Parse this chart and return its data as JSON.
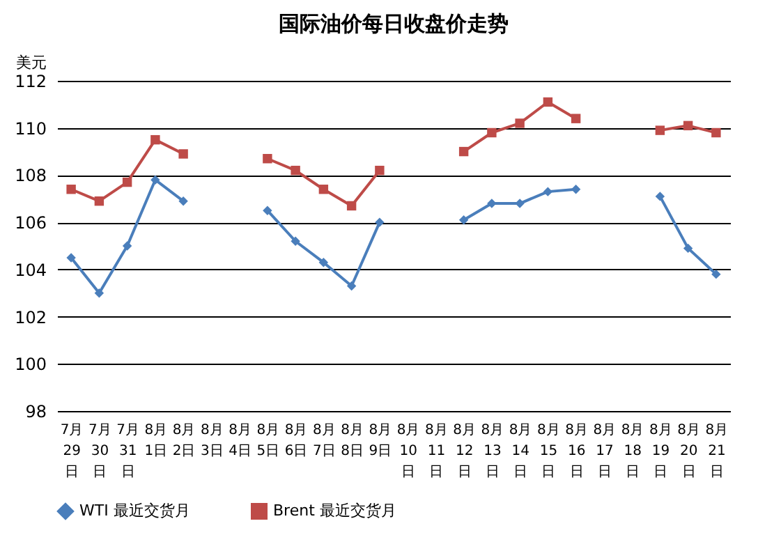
{
  "chart_data": {
    "type": "line",
    "title": "国际油价每日收盘价走势",
    "ylabel": "美元",
    "categories": [
      "7月29日",
      "7月30日",
      "7月31日",
      "8月1日",
      "8月2日",
      "8月3日",
      "8月4日",
      "8月5日",
      "8月6日",
      "8月7日",
      "8月8日",
      "8月9日",
      "8月10日",
      "8月11日",
      "8月12日",
      "8月13日",
      "8月14日",
      "8月15日",
      "8月16日",
      "8月17日",
      "8月18日",
      "8月19日",
      "8月20日",
      "8月21日"
    ],
    "series": [
      {
        "name": "WTI 最近交货月",
        "color": "#4a7ebb",
        "marker": "diamond",
        "values": [
          104.5,
          103.0,
          105.0,
          107.8,
          106.9,
          null,
          null,
          106.5,
          105.2,
          104.3,
          103.3,
          106.0,
          null,
          null,
          106.1,
          106.8,
          106.8,
          107.3,
          107.4,
          null,
          null,
          107.1,
          104.9,
          103.8
        ]
      },
      {
        "name": "Brent 最近交货月",
        "color": "#be4b48",
        "marker": "square",
        "values": [
          107.4,
          106.9,
          107.7,
          109.5,
          108.9,
          null,
          null,
          108.7,
          108.2,
          107.4,
          106.7,
          108.2,
          null,
          null,
          109.0,
          109.8,
          110.2,
          111.1,
          110.4,
          null,
          null,
          109.9,
          110.1,
          109.8
        ]
      }
    ],
    "ylim": [
      98,
      112
    ],
    "yticks": [
      98,
      100,
      102,
      104,
      106,
      108,
      110,
      112
    ],
    "grid": "y",
    "legend": "bottom",
    "line_style": "solid"
  }
}
